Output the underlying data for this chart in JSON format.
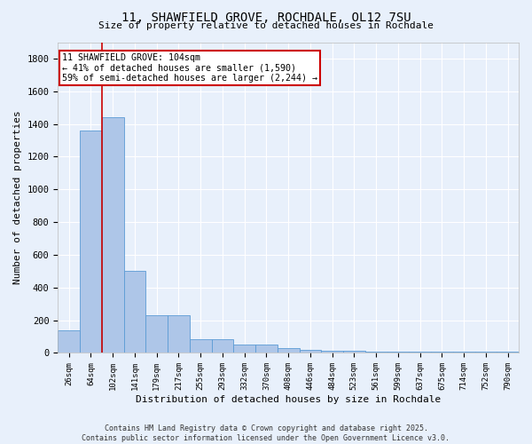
{
  "title": "11, SHAWFIELD GROVE, ROCHDALE, OL12 7SU",
  "subtitle": "Size of property relative to detached houses in Rochdale",
  "xlabel": "Distribution of detached houses by size in Rochdale",
  "ylabel": "Number of detached properties",
  "categories": [
    "26sqm",
    "64sqm",
    "102sqm",
    "141sqm",
    "179sqm",
    "217sqm",
    "255sqm",
    "293sqm",
    "332sqm",
    "370sqm",
    "408sqm",
    "446sqm",
    "484sqm",
    "523sqm",
    "561sqm",
    "599sqm",
    "637sqm",
    "675sqm",
    "714sqm",
    "752sqm",
    "790sqm"
  ],
  "values": [
    140,
    1360,
    1440,
    500,
    230,
    230,
    85,
    85,
    50,
    50,
    30,
    20,
    15,
    15,
    10,
    10,
    10,
    10,
    10,
    10,
    10
  ],
  "bar_color": "#aec6e8",
  "bar_edge_color": "#5b9bd5",
  "background_color": "#e8f0fb",
  "grid_color": "#ffffff",
  "vline_x_index": 1,
  "vline_color": "#cc0000",
  "annotation_text": "11 SHAWFIELD GROVE: 104sqm\n← 41% of detached houses are smaller (1,590)\n59% of semi-detached houses are larger (2,244) →",
  "annotation_box_facecolor": "#ffffff",
  "annotation_box_edgecolor": "#cc0000",
  "ylim": [
    0,
    1900
  ],
  "yticks": [
    0,
    200,
    400,
    600,
    800,
    1000,
    1200,
    1400,
    1600,
    1800
  ],
  "copyright_text": "Contains HM Land Registry data © Crown copyright and database right 2025.\nContains public sector information licensed under the Open Government Licence v3.0.",
  "figsize": [
    6.0,
    5.0
  ],
  "dpi": 100
}
